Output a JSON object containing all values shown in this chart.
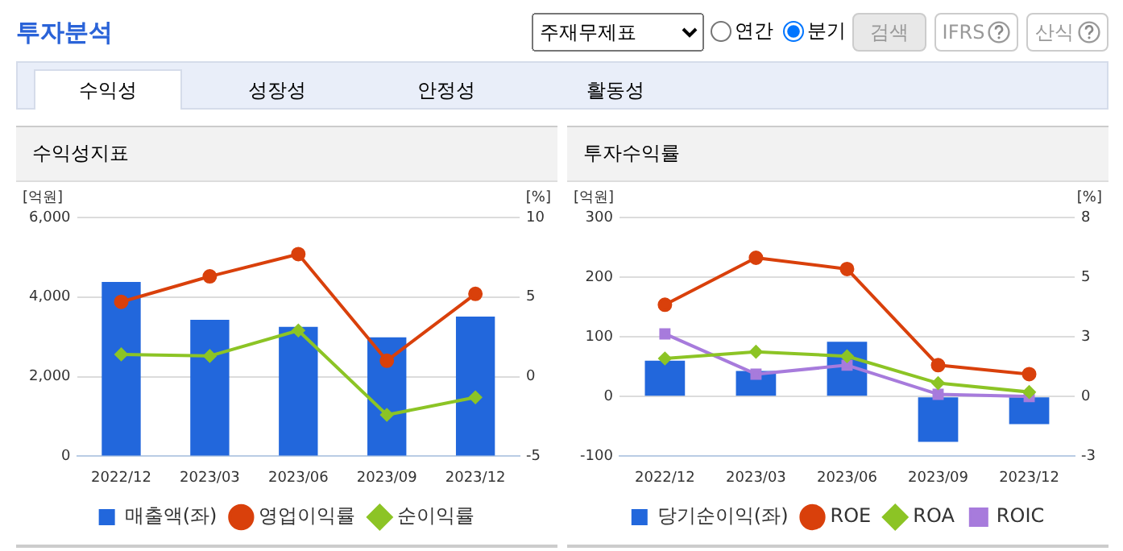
{
  "chart_data": [
    {
      "type": "other",
      "title": "투자분석",
      "annotations": [
        "주재무제표",
        "연간",
        "분기",
        "검색",
        "IFRS",
        "산식",
        "수익성",
        "성장성",
        "안정성",
        "활동성"
      ]
    },
    {
      "type": "bar",
      "title": "수익성지표",
      "ylabel": "[억원]",
      "y2label": "[%]",
      "categories": [
        "2022/12",
        "2023/03",
        "2023/06",
        "2023/09",
        "2023/12"
      ],
      "series": [
        {
          "name": "매출액(좌)",
          "type": "bar",
          "color": "#2267dc",
          "values": [
            4380,
            3430,
            3250,
            2990,
            3510
          ]
        },
        {
          "name": "영업이익률",
          "type": "line",
          "axis": "y2",
          "marker": "circle",
          "color": "#d9400b",
          "values": [
            4.7,
            6.3,
            7.7,
            1.0,
            5.2
          ]
        },
        {
          "name": "순이익률",
          "type": "line",
          "axis": "y2",
          "marker": "diamond",
          "color": "#8cc425",
          "values": [
            1.4,
            1.3,
            2.9,
            -2.4,
            -1.3
          ]
        }
      ],
      "ylim": [
        0,
        6000
      ],
      "yticks": [
        {
          "value": 0,
          "label": "0"
        },
        {
          "value": 2000,
          "label": "2,000"
        },
        {
          "value": 4000,
          "label": "4,000"
        },
        {
          "value": 6000,
          "label": "6,000"
        }
      ],
      "y2lim": [
        -5,
        10
      ],
      "y2ticks": [
        -5,
        0,
        5,
        10
      ],
      "grid": "y",
      "legend": "bottom"
    },
    {
      "type": "bar",
      "title": "투자수익률",
      "ylabel": "[억원]",
      "y2label": "[%]",
      "categories": [
        "2022/12",
        "2023/03",
        "2023/06",
        "2023/09",
        "2023/12"
      ],
      "series": [
        {
          "name": "당기순이익(좌)",
          "type": "bar",
          "color": "#2267dc",
          "values": [
            60,
            43,
            92,
            -76,
            -46
          ]
        },
        {
          "name": "ROE",
          "type": "line",
          "axis": "y2",
          "marker": "circle",
          "color": "#d9400b",
          "values": [
            4.1,
            6.2,
            5.7,
            1.4,
            1.0
          ]
        },
        {
          "name": "ROA",
          "type": "line",
          "axis": "y2",
          "marker": "diamond",
          "color": "#8cc425",
          "values": [
            1.7,
            2.0,
            1.8,
            0.6,
            0.2
          ]
        },
        {
          "name": "ROIC",
          "type": "line",
          "axis": "y2",
          "marker": "square",
          "color": "#a77bdc",
          "values": [
            2.8,
            1.0,
            1.4,
            0.1,
            0.0
          ]
        }
      ],
      "ylim": [
        -100,
        300
      ],
      "yticks": [
        -100,
        0,
        100,
        200,
        300
      ],
      "y2lim": [
        -2.67,
        8
      ],
      "y2ticks": [
        {
          "value": -2.67,
          "label": "-3"
        },
        0,
        {
          "value": 2.67,
          "label": "3"
        },
        {
          "value": 5.33,
          "label": "5"
        },
        8
      ],
      "grid": "y",
      "legend": "bottom"
    }
  ]
}
